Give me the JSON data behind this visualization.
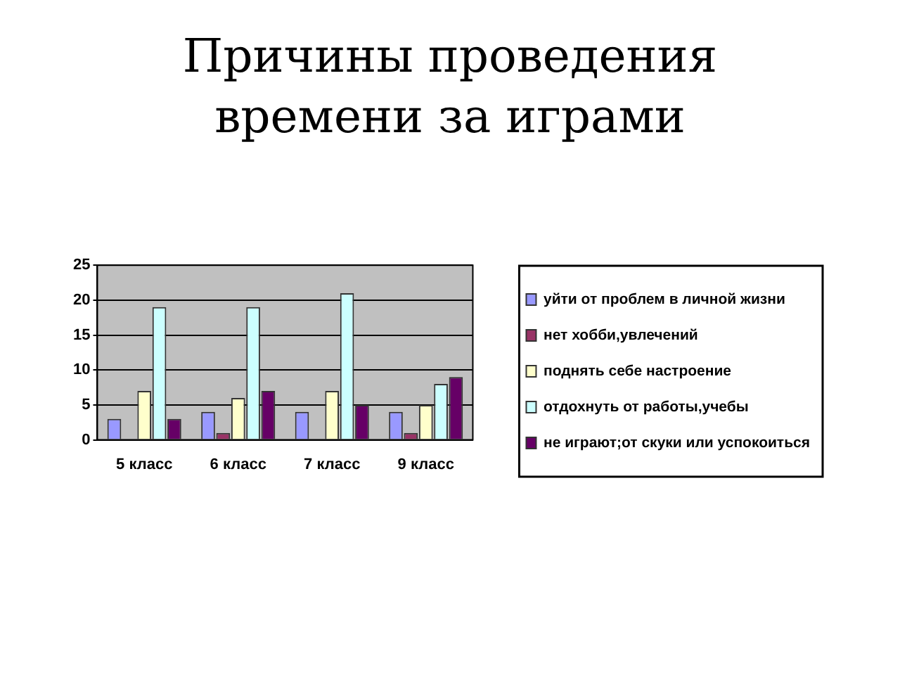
{
  "chart_data": {
    "type": "bar",
    "title": "Причины проведения времени за играми",
    "categories": [
      "5 класс",
      "6 класс",
      "7 класс",
      "9 класс"
    ],
    "series": [
      {
        "name": "уйти от проблем в личной жизни",
        "color": "#9999ff",
        "values": [
          3,
          4,
          4,
          4
        ]
      },
      {
        "name": "нет хобби,увлечений",
        "color": "#993366",
        "values": [
          0,
          1,
          0,
          1
        ]
      },
      {
        "name": "поднять себе настроение",
        "color": "#ffffcc",
        "values": [
          7,
          6,
          7,
          5
        ]
      },
      {
        "name": "отдохнуть от работы,учебы",
        "color": "#ccffff",
        "values": [
          19,
          19,
          21,
          8
        ]
      },
      {
        "name": "не играют;от скуки или успокоиться",
        "color": "#660066",
        "values": [
          3,
          7,
          5,
          9
        ]
      }
    ],
    "ylim": [
      0,
      25
    ],
    "yticks": [
      0,
      5,
      10,
      15,
      20,
      25
    ],
    "grid": "y",
    "legend": "right"
  }
}
